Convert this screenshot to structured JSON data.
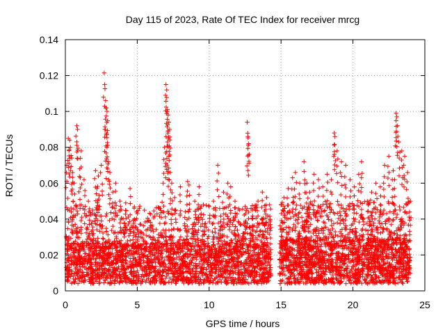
{
  "chart_data": {
    "type": "scatter",
    "title": "Day 115 of 2023, Rate Of TEC Index for receiver mrcg",
    "xlabel": "GPS time / hours",
    "ylabel": "ROTI / TECUs",
    "xlim": [
      0,
      25
    ],
    "ylim": [
      0,
      0.14
    ],
    "xticks": [
      0,
      5,
      10,
      15,
      20,
      25
    ],
    "xtick_labels": [
      "0",
      "5",
      "10",
      "15",
      "20",
      "25"
    ],
    "yticks": [
      0,
      0.02,
      0.04,
      0.06,
      0.08,
      0.1,
      0.12,
      0.14
    ],
    "ytick_labels": [
      "0",
      "0.02",
      "0.04",
      "0.06",
      "0.08",
      "0.1",
      "0.12",
      "0.14"
    ],
    "grid": true,
    "marker": "+",
    "color": "#ff0000",
    "series": [
      {
        "name": "ROTI",
        "points": [
          [
            0.1,
            0.07
          ],
          [
            0.2,
            0.085
          ],
          [
            0.3,
            0.084
          ],
          [
            0.35,
            0.08
          ],
          [
            0.45,
            0.074
          ],
          [
            0.5,
            0.066
          ],
          [
            0.6,
            0.06
          ],
          [
            0.8,
            0.092
          ],
          [
            0.85,
            0.09
          ],
          [
            1.0,
            0.068
          ],
          [
            1.1,
            0.078
          ],
          [
            1.3,
            0.062
          ],
          [
            1.6,
            0.05
          ],
          [
            1.9,
            0.045
          ],
          [
            2.1,
            0.067
          ],
          [
            2.2,
            0.057
          ],
          [
            2.3,
            0.064
          ],
          [
            2.5,
            0.07
          ],
          [
            2.7,
            0.1215
          ],
          [
            2.8,
            0.106
          ],
          [
            2.85,
            0.102
          ],
          [
            2.9,
            0.1
          ],
          [
            2.75,
            0.09
          ],
          [
            2.85,
            0.087
          ],
          [
            2.9,
            0.08
          ],
          [
            3.0,
            0.072
          ],
          [
            3.1,
            0.066
          ],
          [
            3.3,
            0.055
          ],
          [
            3.5,
            0.06
          ],
          [
            3.8,
            0.05
          ],
          [
            4.2,
            0.049
          ],
          [
            4.5,
            0.057
          ],
          [
            4.8,
            0.04
          ],
          [
            5.0,
            0.034
          ],
          [
            5.2,
            0.037
          ],
          [
            5.5,
            0.045
          ],
          [
            5.8,
            0.039
          ],
          [
            6.1,
            0.03
          ],
          [
            6.4,
            0.028
          ],
          [
            6.6,
            0.046
          ],
          [
            6.8,
            0.06
          ],
          [
            6.9,
            0.08
          ],
          [
            7.0,
            0.115
          ],
          [
            7.05,
            0.112
          ],
          [
            7.1,
            0.101
          ],
          [
            7.15,
            0.098
          ],
          [
            7.2,
            0.094
          ],
          [
            7.25,
            0.09
          ],
          [
            7.0,
            0.086
          ],
          [
            7.1,
            0.083
          ],
          [
            7.2,
            0.075
          ],
          [
            7.3,
            0.066
          ],
          [
            7.4,
            0.06
          ],
          [
            7.6,
            0.052
          ],
          [
            8.0,
            0.058
          ],
          [
            8.5,
            0.061
          ],
          [
            8.6,
            0.059
          ],
          [
            9.0,
            0.05
          ],
          [
            9.3,
            0.058
          ],
          [
            9.6,
            0.048
          ],
          [
            10.0,
            0.047
          ],
          [
            10.3,
            0.05
          ],
          [
            10.6,
            0.07
          ],
          [
            11.0,
            0.055
          ],
          [
            11.3,
            0.06
          ],
          [
            11.5,
            0.058
          ],
          [
            11.8,
            0.05
          ],
          [
            12.1,
            0.045
          ],
          [
            12.5,
            0.047
          ],
          [
            12.65,
            0.094
          ],
          [
            12.7,
            0.086
          ],
          [
            12.75,
            0.082
          ],
          [
            13.0,
            0.045
          ],
          [
            13.4,
            0.05
          ],
          [
            13.7,
            0.055
          ],
          [
            14.0,
            0.052
          ],
          [
            14.2,
            0.048
          ],
          [
            15.0,
            0.048
          ],
          [
            15.2,
            0.052
          ],
          [
            15.5,
            0.057
          ],
          [
            15.8,
            0.063
          ],
          [
            16.0,
            0.066
          ],
          [
            16.3,
            0.06
          ],
          [
            16.6,
            0.072
          ],
          [
            16.8,
            0.06
          ],
          [
            17.0,
            0.055
          ],
          [
            17.3,
            0.065
          ],
          [
            17.6,
            0.062
          ],
          [
            17.9,
            0.058
          ],
          [
            18.2,
            0.065
          ],
          [
            18.5,
            0.062
          ],
          [
            18.7,
            0.088
          ],
          [
            18.75,
            0.086
          ],
          [
            18.9,
            0.078
          ],
          [
            19.2,
            0.072
          ],
          [
            19.5,
            0.07
          ],
          [
            19.8,
            0.062
          ],
          [
            20.1,
            0.058
          ],
          [
            20.4,
            0.065
          ],
          [
            20.6,
            0.072
          ],
          [
            21.0,
            0.05
          ],
          [
            21.3,
            0.055
          ],
          [
            21.6,
            0.06
          ],
          [
            21.9,
            0.058
          ],
          [
            22.2,
            0.07
          ],
          [
            22.5,
            0.075
          ],
          [
            22.8,
            0.067
          ],
          [
            22.9,
            0.062
          ],
          [
            23.0,
            0.099
          ],
          [
            23.05,
            0.097
          ],
          [
            23.1,
            0.092
          ],
          [
            23.2,
            0.083
          ],
          [
            23.4,
            0.078
          ],
          [
            23.6,
            0.075
          ],
          [
            23.8,
            0.066
          ],
          [
            24.0,
            0.05
          ]
        ]
      }
    ],
    "density_segments": [
      {
        "x": [
          0.05,
          14.3
        ],
        "base": [
          0.004,
          0.026
        ],
        "upper": 0.048,
        "count": 2600
      },
      {
        "x": [
          14.9,
          24.0
        ],
        "base": [
          0.004,
          0.028
        ],
        "upper": 0.05,
        "count": 1900
      }
    ]
  }
}
